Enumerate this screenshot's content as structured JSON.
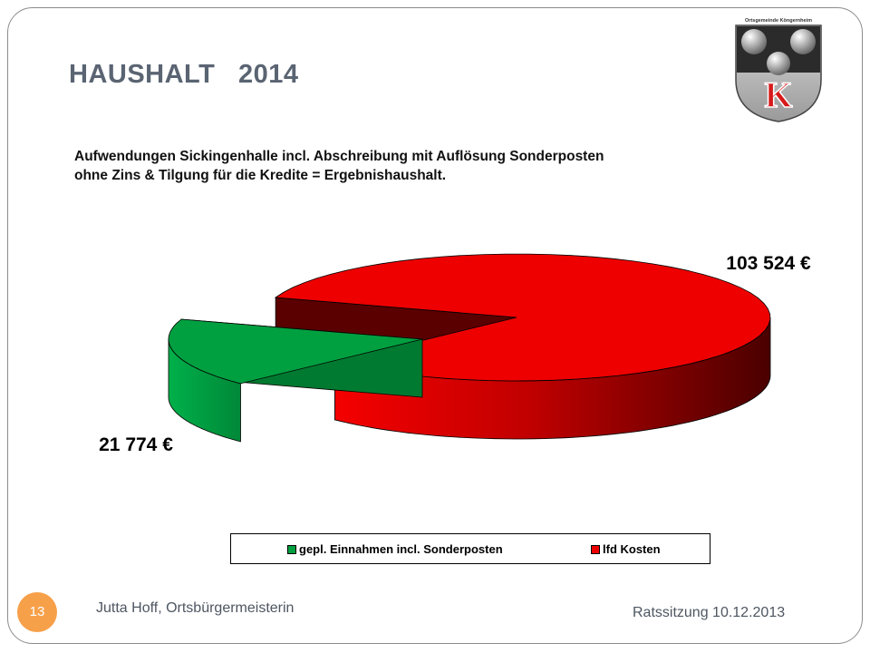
{
  "slide": {
    "title": "HAUSHALT   2014",
    "subtitle_line1": "Aufwendungen Sickingenhalle incl. Abschreibung mit Auflösung Sonderposten",
    "subtitle_line2": "ohne Zins & Tilgung für die Kredite = Ergebnishaushalt.",
    "crest_text": "Ortsgemeinde Köngernheim",
    "crest_letter": "K",
    "slide_number": "13",
    "footer_left": "Jutta Hoff, Ortsbürgermeisterin",
    "footer_right": "Ratssitzung 10.12.2013"
  },
  "chart_data": {
    "type": "pie",
    "variant": "3d-exploded",
    "title": "",
    "legend_position": "bottom",
    "slices": [
      {
        "name": "gepl. Einnahmen incl. Sonderposten",
        "value": 21774,
        "label": "21 774 €",
        "color": "#00a040",
        "exploded": true
      },
      {
        "name": "lfd Kosten",
        "value": 103524,
        "label": "103 524 €",
        "color": "#ee0000",
        "exploded": false
      }
    ]
  }
}
